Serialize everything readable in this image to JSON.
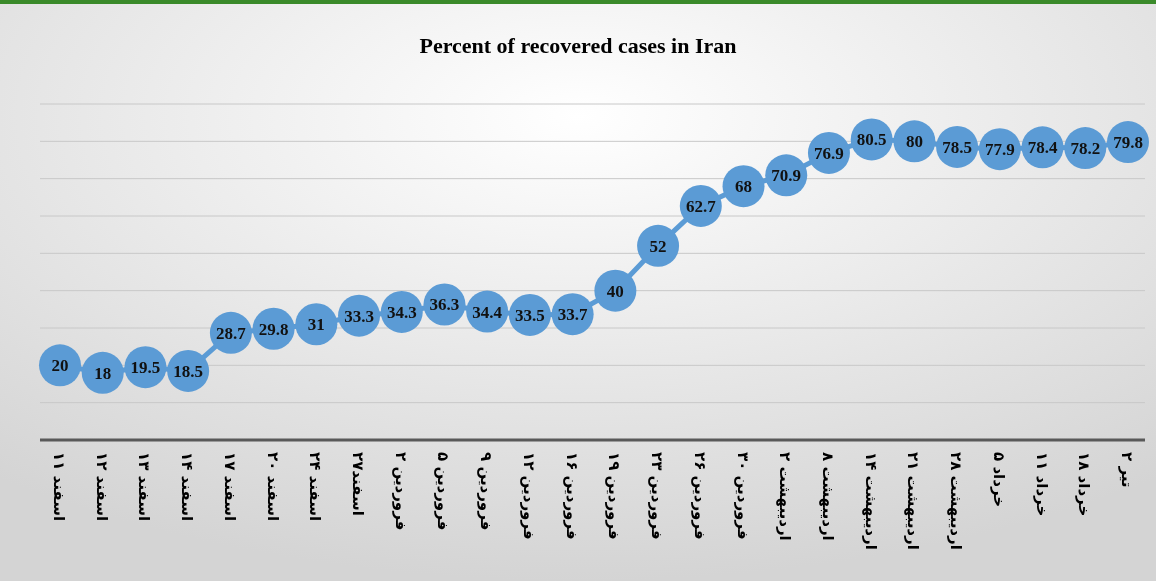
{
  "chart_data": {
    "type": "line",
    "title": "Percent of recovered cases in Iran",
    "categories": [
      "۱۱ اسفند",
      "۱۲ اسفند",
      "۱۳ اسفند",
      "۱۴ اسفند",
      "۱۷ اسفند",
      "۲۰ اسفند",
      "۲۴ اسفند",
      "۲۷اسفند",
      "۲ فروردین",
      "۵ فروردین",
      "۹ فروردین",
      "۱۲ فروردین",
      "۱۶ فروردین",
      "۱۹ فروردین",
      "۲۳ فروردین",
      "۲۶ فروردین",
      "۳۰ فروردین",
      "۲ اردیبهشت",
      "۸ اردیبهشت",
      "۱۴ اردیبهشت",
      "۲۱ اردیبهشت",
      "۲۸ اردیبهشت",
      "۵ خرداد",
      "۱۱ خرداد",
      "۱۸ خرداد",
      "۲ تیر"
    ],
    "series": [
      {
        "color": "#5b9bd5",
        "values": [
          20,
          18,
          19.5,
          18.5,
          28.7,
          29.8,
          31,
          33.3,
          34.3,
          36.3,
          34.4,
          33.5,
          33.7,
          40,
          52,
          62.7,
          68,
          70.9,
          76.9,
          80.5,
          80,
          78.5,
          77.9,
          78.4,
          78.2,
          79.8
        ]
      }
    ],
    "ylim": [
      0,
      90
    ],
    "yticks": [
      {
        "value": 10,
        "label": null
      },
      {
        "value": 20,
        "label": null
      },
      {
        "value": 30,
        "label": null
      },
      {
        "value": 40,
        "label": null
      },
      {
        "value": 50,
        "label": null
      },
      {
        "value": 60,
        "label": null
      },
      {
        "value": 70,
        "label": null
      },
      {
        "value": 80,
        "label": null
      },
      {
        "value": 90,
        "label": null
      }
    ],
    "tick_labels": "x",
    "grid": "y",
    "marker": "circle",
    "line_style": "solid",
    "data_labels": true
  }
}
